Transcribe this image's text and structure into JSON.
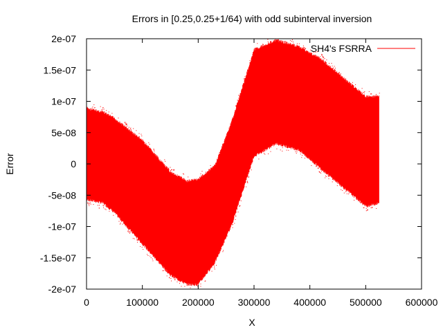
{
  "chart_data": {
    "type": "scatter",
    "title": "Errors in [0.25,0.25+1/64) with odd subinterval inversion",
    "xlabel": "X",
    "ylabel": "Error",
    "xlim": [
      0,
      600000
    ],
    "ylim": [
      -2e-07,
      2e-07
    ],
    "x_ticks": [
      0,
      100000,
      200000,
      300000,
      400000,
      500000,
      600000
    ],
    "x_tick_labels": [
      "0",
      "100000",
      "200000",
      "300000",
      "400000",
      "500000",
      "600000"
    ],
    "y_ticks": [
      -2e-07,
      -1.5e-07,
      -1e-07,
      -5e-08,
      0,
      5e-08,
      1e-07,
      1.5e-07,
      2e-07
    ],
    "y_tick_labels": [
      "-2e-07",
      "-1.5e-07",
      "-1e-07",
      "-5e-08",
      "0",
      "5e-08",
      "1e-07",
      "1.5e-07",
      "2e-07"
    ],
    "grid": false,
    "legend_position": "top-right",
    "series": [
      {
        "name": "SH4's FSRRA",
        "color": "#ff0000",
        "x_range": [
          0,
          524288
        ],
        "envelope_x": [
          0,
          5000,
          30000,
          50000,
          100000,
          150000,
          180000,
          200000,
          230000,
          260000,
          300000,
          340000,
          380000,
          420000,
          460000,
          500000,
          524000
        ],
        "envelope_upper": [
          9.2e-08,
          9e-08,
          8.5e-08,
          7.5e-08,
          4e-08,
          -1e-08,
          -2.5e-08,
          -2.2e-08,
          0.0,
          7e-08,
          1.85e-07,
          2e-07,
          1.9e-07,
          1.7e-07,
          1.4e-07,
          1.1e-07,
          1.1e-07
        ],
        "envelope_lower": [
          -6e-08,
          -6e-08,
          -6.5e-08,
          -8e-08,
          -1.3e-07,
          -1.8e-07,
          -1.95e-07,
          -1.95e-07,
          -1.6e-07,
          -1e-07,
          1e-08,
          3e-08,
          2e-08,
          -1e-08,
          -4e-08,
          -7e-08,
          -6.5e-08
        ]
      }
    ]
  }
}
